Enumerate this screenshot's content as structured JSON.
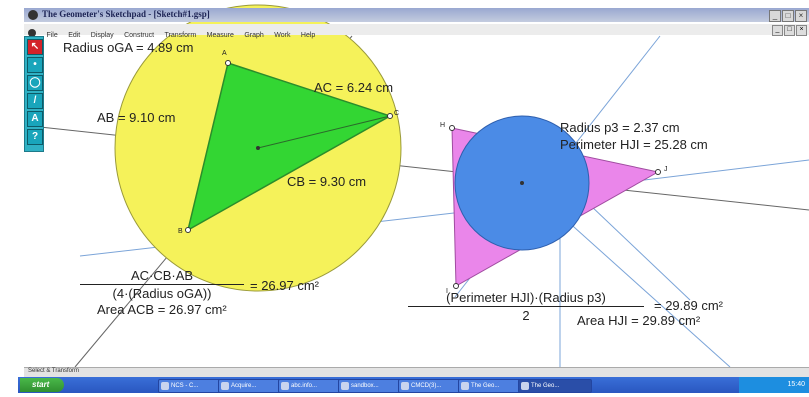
{
  "window": {
    "title": "The Geometer's Sketchpad - [Sketch#1.gsp]",
    "controls": [
      "_",
      "□",
      "×"
    ]
  },
  "menubar": {
    "items": [
      "File",
      "Edit",
      "Display",
      "Construct",
      "Transform",
      "Measure",
      "Graph",
      "Work",
      "Help"
    ],
    "controls": [
      "_",
      "□",
      "×"
    ]
  },
  "toolbox": {
    "tools": [
      {
        "name": "arrow-icon",
        "glyph": "↖"
      },
      {
        "name": "point-icon",
        "glyph": "•"
      },
      {
        "name": "compass-icon",
        "glyph": "◯"
      },
      {
        "name": "straightedge-icon",
        "glyph": "/"
      },
      {
        "name": "text-icon",
        "glyph": "A"
      },
      {
        "name": "help-icon",
        "glyph": "?"
      }
    ]
  },
  "measurements": {
    "radius_oga": "Radius oGA = 4.89 cm",
    "ac": "AC = 6.24 cm",
    "ab": "AB = 9.10 cm",
    "cb": "CB = 9.30 cm",
    "radius_p3": "Radius p3 = 2.37 cm",
    "perimeter_hji": "Perimeter HJI = 25.28 cm"
  },
  "points": {
    "a": "A",
    "c": "C",
    "b": "B",
    "h": "H",
    "j": "J",
    "i": "I"
  },
  "calc_left": {
    "numerator": "AC·CB·AB",
    "denominator": "(4·(Radius oGA))",
    "result": "= 26.97 cm²",
    "area": "Area ACB = 26.97 cm²"
  },
  "calc_right": {
    "numerator": "(Perimeter HJI)·(Radius p3)",
    "denominator": "2",
    "result": "= 29.89 cm²",
    "area": "Area HJI = 29.89 cm²"
  },
  "colors": {
    "circle_fill": "#f5f25a",
    "triangle_acb": "#33d633",
    "triangle_hji": "#ea86ea",
    "incircle": "#4b8be6",
    "toolbox": "#2fb1c4",
    "taskbar": "#2a57c0"
  },
  "statusbar": {
    "text": "Select & Transform"
  },
  "taskbar": {
    "start": "start",
    "tasks": [
      "NCS - C...",
      "Acquire...",
      "abc.info...",
      "sandbox...",
      "CMCD(3)...",
      "The Geo...",
      "The Geo..."
    ],
    "clock": "15:40"
  }
}
